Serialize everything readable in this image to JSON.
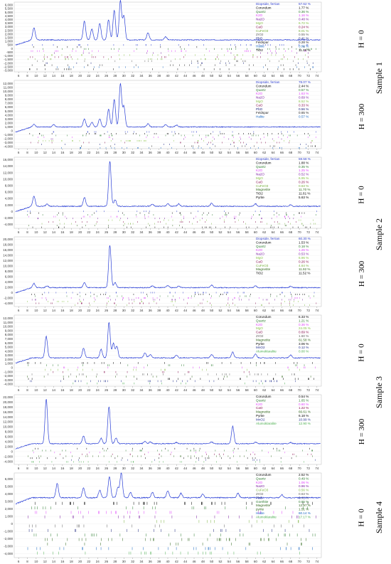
{
  "colors": {
    "line": "#2a3fd6",
    "phases": {
      "Diopside, ferrian": "#3040d0",
      "Corundum": "#000000",
      "Quartz": "#2e7d32",
      "K2O": "#e040fb",
      "Na2O": "#7b1fa2",
      "MgO": "#8bc34a",
      "CaO": "#880e4f",
      "CuFeO3": "#7cb342",
      "ZrO2": "#616161",
      "PbO": "#1a237e",
      "Feldspar": "#222222",
      "Halite": "#1565c0",
      "TiO2": "#000000",
      "Magnetite": "#33691e",
      "Pyrite": "#000000",
      "MnO2": "#283593",
      "Alumoklaralite": "#4caf50",
      "Goethite": "#2e7d32",
      "pyrite": "#33691e"
    }
  },
  "sample_labels": [
    "Sample 1",
    "Sample 2",
    "Sample 3",
    "Sample 4"
  ],
  "chart_data": [
    {
      "type": "line",
      "h_label": "H = 0",
      "sample": "Sample 1",
      "x_ticks": [
        6,
        8,
        10,
        12,
        14,
        16,
        18,
        20,
        22,
        24,
        26,
        28,
        30,
        32,
        34,
        36,
        38,
        40,
        42,
        44,
        46,
        48,
        50,
        52,
        54,
        56,
        58,
        60,
        62,
        64,
        66,
        68,
        70,
        72,
        74
      ],
      "y_ticks": [
        6000,
        5500,
        5000,
        4500,
        4000,
        3500,
        3000,
        2500,
        2000,
        1500,
        1000,
        500,
        0,
        -500,
        -1000,
        -1500,
        -2000,
        -2500,
        -3000
      ],
      "ylim": [
        -3200,
        6400
      ],
      "xlim": [
        5,
        75
      ],
      "baseline": 1200,
      "peaks": [
        [
          9.5,
          1700
        ],
        [
          21,
          2600
        ],
        [
          22.7,
          1500
        ],
        [
          24.5,
          2300
        ],
        [
          26.5,
          2800
        ],
        [
          27.8,
          4100
        ],
        [
          29.2,
          5400
        ],
        [
          30,
          3300
        ],
        [
          35.5,
          1000
        ],
        [
          39.5,
          450
        ]
      ],
      "legend": [
        {
          "name": "Diopside, ferrian",
          "pct": "57.62 %"
        },
        {
          "name": "Corundum",
          "pct": "1.77 %"
        },
        {
          "name": "Quartz",
          "pct": "0.36 %"
        },
        {
          "name": "K2O",
          "pct": "1.16 %"
        },
        {
          "name": "Na2O",
          "pct": "0.48 %"
        },
        {
          "name": "MgO",
          "pct": "6.72 %"
        },
        {
          "name": "CaO",
          "pct": "0.24 %"
        },
        {
          "name": "CuFeO3",
          "pct": "8.01 %"
        },
        {
          "name": "ZrO2",
          "pct": "0.55 %"
        },
        {
          "name": "PbO",
          "pct": "0.41 %"
        },
        {
          "name": "Feldspar",
          "pct": "0.28 %"
        },
        {
          "name": "Halite",
          "pct": "0.96 %"
        },
        {
          "name": "TiO2",
          "pct": "11.36 %"
        }
      ]
    },
    {
      "type": "line",
      "h_label": "H = 300",
      "sample": "Sample 1",
      "x_ticks": [
        6,
        8,
        10,
        12,
        14,
        16,
        18,
        20,
        22,
        24,
        26,
        28,
        30,
        32,
        34,
        36,
        38,
        40,
        42,
        44,
        46,
        48,
        50,
        52,
        54,
        56,
        58,
        60,
        62,
        64,
        66,
        68,
        70,
        72,
        74
      ],
      "y_ticks": [
        12000,
        11000,
        10000,
        9000,
        8000,
        7000,
        6000,
        5000,
        4000,
        3000,
        2000,
        1000,
        0,
        -1000,
        -2000,
        -3000,
        -4000
      ],
      "ylim": [
        -4500,
        12800
      ],
      "xlim": [
        5,
        75
      ],
      "baseline": 1000,
      "peaks": [
        [
          9.5,
          700
        ],
        [
          14,
          600
        ],
        [
          21,
          2000
        ],
        [
          22.7,
          1200
        ],
        [
          24.5,
          2100
        ],
        [
          26.5,
          4500
        ],
        [
          27.8,
          7000
        ],
        [
          29.2,
          11000
        ],
        [
          30,
          5200
        ],
        [
          35.5,
          800
        ],
        [
          39.5,
          600
        ],
        [
          42,
          500
        ]
      ],
      "legend": [
        {
          "name": "Diopside, ferrian",
          "pct": "78.07 %"
        },
        {
          "name": "Corundum",
          "pct": "2.44 %"
        },
        {
          "name": "Quartz",
          "pct": "0.57 %"
        },
        {
          "name": "K2O",
          "pct": "1.63 %"
        },
        {
          "name": "Na2O",
          "pct": "0.69 %"
        },
        {
          "name": "MgO",
          "pct": "8.52 %"
        },
        {
          "name": "CaO",
          "pct": "0.33 %"
        },
        {
          "name": "PbO",
          "pct": "0.56 %"
        },
        {
          "name": "Feldspar",
          "pct": "0.65 %"
        },
        {
          "name": "Halite",
          "pct": "0.57 %"
        }
      ]
    },
    {
      "type": "line",
      "h_label": "H = 0",
      "sample": "Sample 2",
      "x_ticks": [
        6,
        8,
        10,
        12,
        14,
        16,
        18,
        20,
        22,
        24,
        26,
        28,
        30,
        32,
        34,
        36,
        38,
        40,
        42,
        44,
        46,
        48,
        50,
        52,
        54,
        56,
        58,
        60,
        62,
        64,
        66,
        68,
        70,
        72,
        74
      ],
      "y_ticks": [
        16000,
        14000,
        12000,
        10000,
        8000,
        6000,
        4000,
        2000,
        0,
        -2000,
        -4000
      ],
      "ylim": [
        -5200,
        16800
      ],
      "xlim": [
        5,
        75
      ],
      "baseline": 1600,
      "peaks": [
        [
          9.5,
          3100
        ],
        [
          12.5,
          800
        ],
        [
          21,
          2700
        ],
        [
          26.8,
          14000
        ],
        [
          28,
          2000
        ],
        [
          36.5,
          700
        ],
        [
          40,
          800
        ],
        [
          42.5,
          800
        ],
        [
          50,
          1000
        ],
        [
          60,
          800
        ],
        [
          68,
          500
        ]
      ],
      "legend": [
        {
          "name": "Diopside, ferrian",
          "pct": "59.58 %"
        },
        {
          "name": "Corundum",
          "pct": "1.88 %"
        },
        {
          "name": "Quartz",
          "pct": "0.35 %"
        },
        {
          "name": "K2O",
          "pct": "1.25 %"
        },
        {
          "name": "Na2O",
          "pct": "0.52 %"
        },
        {
          "name": "MgO",
          "pct": "6.95 %"
        },
        {
          "name": "CaO",
          "pct": "0.26 %"
        },
        {
          "name": "CuFeO3",
          "pct": "0.63 %"
        },
        {
          "name": "Magnetite",
          "pct": "11.70 %"
        },
        {
          "name": "TiO2",
          "pct": "11.61 %"
        },
        {
          "name": "Pyrite",
          "pct": "5.63 %"
        }
      ]
    },
    {
      "type": "line",
      "h_label": "H = 300",
      "sample": "Sample 2",
      "x_ticks": [
        6,
        8,
        10,
        12,
        14,
        16,
        18,
        20,
        22,
        24,
        26,
        28,
        30,
        32,
        34,
        36,
        38,
        40,
        42,
        44,
        46,
        48,
        50,
        52,
        54,
        56,
        58,
        60,
        62,
        64,
        66,
        68,
        70,
        72,
        74
      ],
      "y_ticks": [
        20000,
        18000,
        16000,
        14000,
        12000,
        10000,
        8000,
        6000,
        4000,
        2000,
        0,
        -2000,
        -4000
      ],
      "ylim": [
        -5200,
        21000
      ],
      "xlim": [
        5,
        75
      ],
      "baseline": 1900,
      "peaks": [
        [
          9.5,
          1600
        ],
        [
          12.5,
          700
        ],
        [
          21,
          2000
        ],
        [
          26.8,
          16000
        ],
        [
          28,
          1900
        ],
        [
          36.5,
          700
        ],
        [
          40,
          800
        ],
        [
          42.5,
          600
        ],
        [
          50,
          1000
        ],
        [
          60,
          700
        ],
        [
          68,
          500
        ]
      ],
      "legend": [
        {
          "name": "Diopside, ferrian",
          "pct": "60.30 %"
        },
        {
          "name": "Corundum",
          "pct": "1.53 %"
        },
        {
          "name": "Quartz",
          "pct": "0.18 %"
        },
        {
          "name": "K2O",
          "pct": "1.26 %"
        },
        {
          "name": "Na2O",
          "pct": "0.53 %"
        },
        {
          "name": "MgO",
          "pct": "6.96 %"
        },
        {
          "name": "CaO",
          "pct": "0.26 %"
        },
        {
          "name": "CuFeO3",
          "pct": "4.64 %"
        },
        {
          "name": "Magnetite",
          "pct": "11.92 %"
        },
        {
          "name": "TiO2",
          "pct": "11.52 %"
        }
      ]
    },
    {
      "type": "line",
      "h_label": "H = 0",
      "sample": "Sample 3",
      "x_ticks": [
        6,
        8,
        10,
        12,
        14,
        16,
        18,
        20,
        22,
        24,
        26,
        28,
        30,
        32,
        34,
        36,
        38,
        40,
        42,
        44,
        46,
        48,
        50,
        52,
        54,
        56,
        58,
        60,
        62,
        64,
        66,
        68,
        70,
        72,
        74
      ],
      "y_ticks": [
        12000,
        11000,
        10000,
        9000,
        8000,
        7000,
        6000,
        5000,
        4000,
        3000,
        2000,
        1000,
        0,
        -1000,
        -2000,
        -3000,
        -4000
      ],
      "ylim": [
        -4500,
        12800
      ],
      "xlim": [
        5,
        75
      ],
      "baseline": 2400,
      "peaks": [
        [
          12.3,
          5200
        ],
        [
          20.8,
          2300
        ],
        [
          24.8,
          2100
        ],
        [
          26.6,
          8600
        ],
        [
          27.6,
          3500
        ],
        [
          28.4,
          2800
        ],
        [
          34.8,
          1200
        ],
        [
          36,
          800
        ],
        [
          42,
          700
        ],
        [
          50,
          800
        ],
        [
          54.8,
          1400
        ],
        [
          60,
          900
        ],
        [
          68,
          700
        ]
      ],
      "legend": [
        {
          "name": "Corundum",
          "pct": "6.33 %"
        },
        {
          "name": "Quartz",
          "pct": "1.21 %"
        },
        {
          "name": "K2O",
          "pct": "0.36 %"
        },
        {
          "name": "MgO",
          "pct": "24.05 %"
        },
        {
          "name": "CaO",
          "pct": "0.69 %"
        },
        {
          "name": "ZrO2",
          "pct": "1.60 %"
        },
        {
          "name": "Magnetite",
          "pct": "61.58 %"
        },
        {
          "name": "Pyrite",
          "pct": "3.06 %"
        },
        {
          "name": "MnO2",
          "pct": "0.12 %"
        },
        {
          "name": "Alumoklaralite",
          "pct": "0.00 %"
        }
      ]
    },
    {
      "type": "line",
      "h_label": "H = 300",
      "sample": "Sample 3",
      "x_ticks": [
        6,
        8,
        10,
        12,
        14,
        16,
        18,
        20,
        22,
        24,
        26,
        28,
        30,
        32,
        34,
        36,
        38,
        40,
        42,
        44,
        46,
        48,
        50,
        52,
        54,
        56,
        58,
        60,
        62,
        64,
        66,
        68,
        70,
        72,
        74
      ],
      "y_ticks": [
        22000,
        20000,
        18000,
        16000,
        14000,
        12000,
        10000,
        8000,
        6000,
        4000,
        2000,
        0,
        -2000,
        -4000
      ],
      "ylim": [
        -5200,
        23000
      ],
      "xlim": [
        5,
        75
      ],
      "baseline": 3200,
      "peaks": [
        [
          12.3,
          18000
        ],
        [
          20.8,
          3200
        ],
        [
          24.8,
          2200
        ],
        [
          26.6,
          15000
        ],
        [
          28.2,
          2300
        ],
        [
          34.8,
          1000
        ],
        [
          36,
          700
        ],
        [
          42,
          500
        ],
        [
          50,
          700
        ],
        [
          54.8,
          7000
        ],
        [
          60,
          600
        ],
        [
          68,
          500
        ]
      ],
      "legend": [
        {
          "name": "Corundum",
          "pct": "0.54 %"
        },
        {
          "name": "Quartz",
          "pct": "1.65 %"
        },
        {
          "name": "K2O",
          "pct": "0.60 %"
        },
        {
          "name": "CaO",
          "pct": "1.22 %"
        },
        {
          "name": "Magnetite",
          "pct": "66.61 %"
        },
        {
          "name": "Pyrite",
          "pct": "6.18 %"
        },
        {
          "name": "MnO2",
          "pct": "10.99 %"
        },
        {
          "name": "Alumoklaralite",
          "pct": "12.90 %"
        }
      ]
    },
    {
      "type": "line",
      "h_label": "H = 0",
      "sample": "Sample 4",
      "x_ticks": [
        6,
        8,
        10,
        12,
        14,
        16,
        18,
        20,
        22,
        24,
        26,
        28,
        30,
        32,
        34,
        36,
        38,
        40,
        42,
        44,
        46,
        48,
        50,
        52,
        54,
        56,
        58,
        60,
        62,
        64,
        66,
        68,
        70,
        72,
        74
      ],
      "y_ticks": [
        6000,
        5000,
        4000,
        3000,
        2000,
        1000,
        0,
        -1000,
        -2000,
        -3000,
        -4000
      ],
      "ylim": [
        -4500,
        6800
      ],
      "xlim": [
        5,
        75
      ],
      "baseline": 3500,
      "peaks": [
        [
          14.8,
          1900
        ],
        [
          20.8,
          1300
        ],
        [
          24.5,
          1000
        ],
        [
          26.7,
          2800
        ],
        [
          28.6,
          1300
        ],
        [
          29.4,
          3300
        ],
        [
          31.5,
          700
        ],
        [
          36.5,
          700
        ],
        [
          40,
          900
        ],
        [
          43,
          600
        ],
        [
          48,
          500
        ],
        [
          56,
          600
        ],
        [
          66,
          400
        ]
      ],
      "legend": [
        {
          "name": "Corundum",
          "pct": "2.52 %"
        },
        {
          "name": "Quartz",
          "pct": "0.49 %"
        },
        {
          "name": "K2O",
          "pct": "1.06 %"
        },
        {
          "name": "Na2O",
          "pct": "0.96 %"
        },
        {
          "name": "CuFeO3",
          "pct": "0.56 %"
        },
        {
          "name": "ZrO2",
          "pct": "0.63 %"
        },
        {
          "name": "PbO",
          "pct": "0.41 %"
        },
        {
          "name": "Goethite",
          "pct": "0.65 %"
        },
        {
          "name": "Magnetite",
          "pct": "12.97 %"
        },
        {
          "name": "pyrite",
          "pct": "1.51 %"
        },
        {
          "name": "Halite",
          "pct": "60.14 %"
        },
        {
          "name": "Alumoklaralite",
          "pct": "17.17 %"
        }
      ]
    }
  ]
}
